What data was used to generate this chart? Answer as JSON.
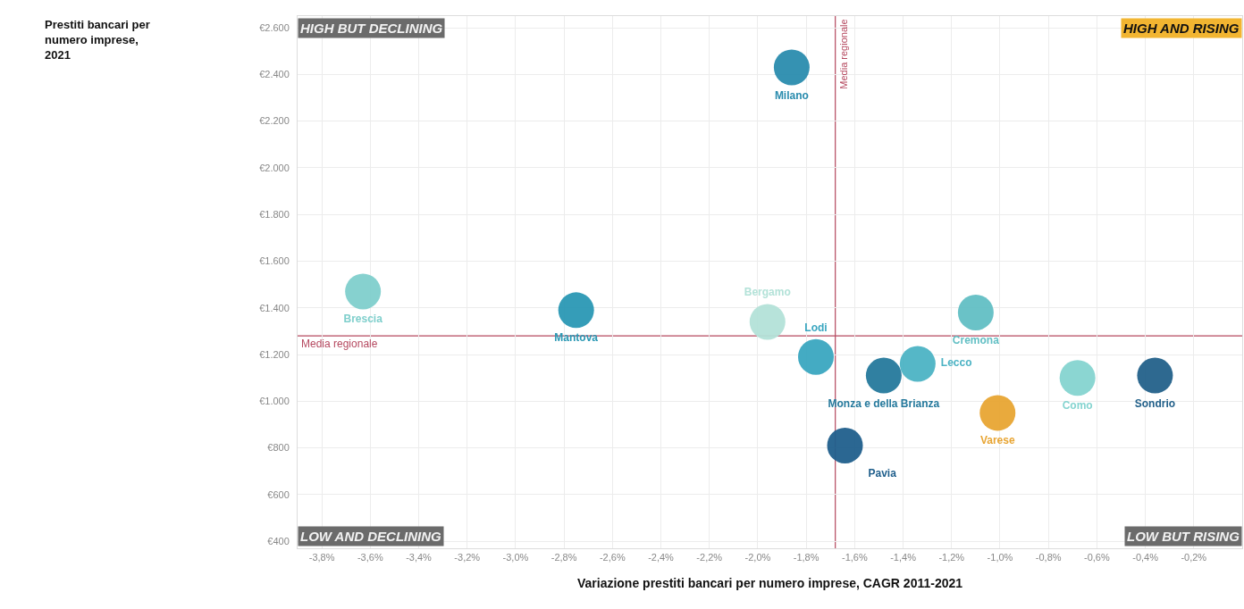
{
  "chart_data": {
    "type": "scatter",
    "xlabel": "Variazione prestiti bancari per numero imprese, CAGR 2011-2021",
    "xlim": [
      -3.9,
      0
    ],
    "ylim": [
      370,
      2650
    ],
    "xticks": [
      {
        "value": -3.8,
        "label": "-3,8%"
      },
      {
        "value": -3.6,
        "label": "-3,6%"
      },
      {
        "value": -3.4,
        "label": "-3,4%"
      },
      {
        "value": -3.2,
        "label": "-3,2%"
      },
      {
        "value": -3.0,
        "label": "-3,0%"
      },
      {
        "value": -2.8,
        "label": "-2,8%"
      },
      {
        "value": -2.6,
        "label": "-2,6%"
      },
      {
        "value": -2.4,
        "label": "-2,4%"
      },
      {
        "value": -2.2,
        "label": "-2,2%"
      },
      {
        "value": -2.0,
        "label": "-2,0%"
      },
      {
        "value": -1.8,
        "label": "-1,8%"
      },
      {
        "value": -1.6,
        "label": "-1,6%"
      },
      {
        "value": -1.4,
        "label": "-1,4%"
      },
      {
        "value": -1.2,
        "label": "-1,2%"
      },
      {
        "value": -1.0,
        "label": "-1,0%"
      },
      {
        "value": -0.8,
        "label": "-0,8%"
      },
      {
        "value": -0.6,
        "label": "-0,6%"
      },
      {
        "value": -0.4,
        "label": "-0,4%"
      },
      {
        "value": -0.2,
        "label": "-0,2%"
      }
    ],
    "yticks": [
      {
        "value": 400,
        "label": "€400"
      },
      {
        "value": 600,
        "label": "€600"
      },
      {
        "value": 800,
        "label": "€800"
      },
      {
        "value": 1000,
        "label": "€1.000"
      },
      {
        "value": 1200,
        "label": "€1.200"
      },
      {
        "value": 1400,
        "label": "€1.400"
      },
      {
        "value": 1600,
        "label": "€1.600"
      },
      {
        "value": 1800,
        "label": "€1.800"
      },
      {
        "value": 2000,
        "label": "€2.000"
      },
      {
        "value": 2200,
        "label": "€2.200"
      },
      {
        "value": 2400,
        "label": "€2.400"
      },
      {
        "value": 2600,
        "label": "€2.600"
      }
    ],
    "grid": true,
    "legend": false,
    "marker": "circle",
    "series": [
      {
        "name": "Brescia",
        "color": "#7fcfcc",
        "x": [
          -3.63
        ],
        "values": [
          1470
        ]
      },
      {
        "name": "Mantova",
        "color": "#2a98b4",
        "x": [
          -2.75
        ],
        "values": [
          1390
        ]
      },
      {
        "name": "Milano",
        "color": "#2a8cae",
        "x": [
          -1.86
        ],
        "values": [
          2430
        ]
      },
      {
        "name": "Bergamo",
        "color": "#b3e2d8",
        "x": [
          -1.96
        ],
        "values": [
          1340
        ]
      },
      {
        "name": "Lodi",
        "color": "#3aa6c0",
        "x": [
          -1.76
        ],
        "values": [
          1190
        ]
      },
      {
        "name": "Monza e della Brianza",
        "color": "#25799c",
        "x": [
          -1.48
        ],
        "values": [
          1110
        ]
      },
      {
        "name": "Lecco",
        "color": "#4cb3c4",
        "x": [
          -1.34
        ],
        "values": [
          1160
        ]
      },
      {
        "name": "Cremona",
        "color": "#62bfc4",
        "x": [
          -1.1
        ],
        "values": [
          1380
        ]
      },
      {
        "name": "Pavia",
        "color": "#205f8c",
        "x": [
          -1.64
        ],
        "values": [
          810
        ]
      },
      {
        "name": "Varese",
        "color": "#e8a533",
        "x": [
          -1.01
        ],
        "values": [
          950
        ]
      },
      {
        "name": "Como",
        "color": "#85d4d0",
        "x": [
          -0.68
        ],
        "values": [
          1100
        ]
      },
      {
        "name": "Sondrio",
        "color": "#23618a",
        "x": [
          -0.36
        ],
        "values": [
          1110
        ]
      }
    ],
    "ref_lines": [
      {
        "axis": "x",
        "value": -1.68,
        "label": "Media regionale",
        "color": "#b5485f"
      },
      {
        "axis": "y",
        "value": 1280,
        "label": "Media regionale",
        "color": "#b5485f"
      }
    ],
    "annotations": [
      "HIGH BUT DECLINING",
      "HIGH AND RISING",
      "LOW AND DECLINING",
      "LOW BUT RISING",
      "Prestiti bancari per numero imprese, 2021"
    ]
  }
}
